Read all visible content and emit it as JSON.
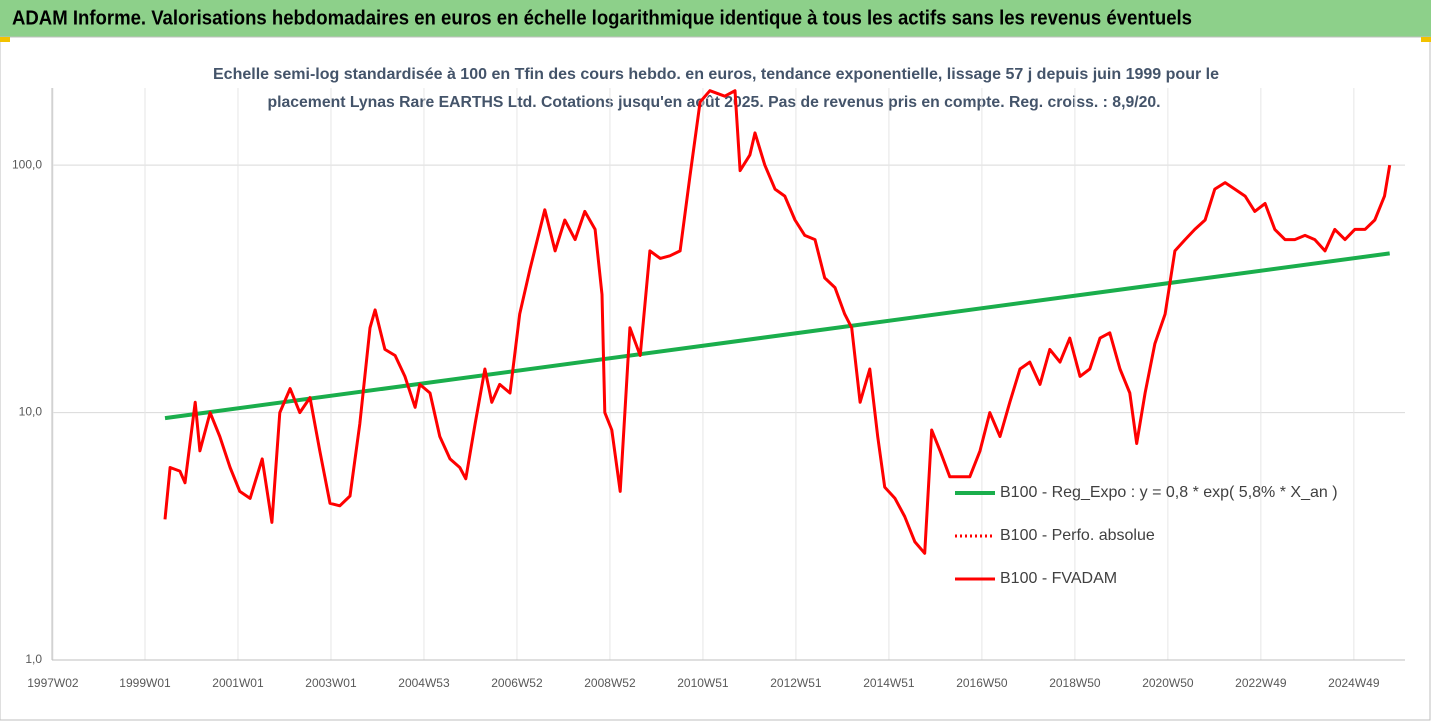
{
  "chart_data": {
    "type": "line",
    "title": "ADAM Informe. Valorisations hebdomadaires en euros en échelle logarithmique identique à tous les actifs sans les revenus éventuels",
    "subtitle": [
      "Echelle semi-log standardisée à 100 en Tfin des cours hebdo. en euros, tendance exponentielle, lissage 57 j depuis juin 1999 pour le",
      "placement Lynas Rare EARTHS Ltd. Cotations jusqu'en août 2025. Pas de revenus pris en compte. Reg. croiss. : 8,9/20."
    ],
    "log_scale_y": true,
    "grid": true,
    "legend_position": "right",
    "xlim": [
      1997.0,
      2026.1
    ],
    "xticks": [
      {
        "value": 1997.02,
        "label": "1997W02"
      },
      {
        "value": 1999.0,
        "label": "1999W01"
      },
      {
        "value": 2001.0,
        "label": "2001W01"
      },
      {
        "value": 2003.0,
        "label": "2003W01"
      },
      {
        "value": 2005.0,
        "label": "2004W53"
      },
      {
        "value": 2007.0,
        "label": "2006W52"
      },
      {
        "value": 2009.0,
        "label": "2008W52"
      },
      {
        "value": 2011.0,
        "label": "2010W51"
      },
      {
        "value": 2013.0,
        "label": "2012W51"
      },
      {
        "value": 2015.0,
        "label": "2014W51"
      },
      {
        "value": 2017.0,
        "label": "2016W50"
      },
      {
        "value": 2019.0,
        "label": "2018W50"
      },
      {
        "value": 2021.0,
        "label": "2020W50"
      },
      {
        "value": 2023.0,
        "label": "2022W49"
      },
      {
        "value": 2025.0,
        "label": "2024W49"
      }
    ],
    "ylim": [
      1,
      205
    ],
    "yticks": [
      {
        "value": 1,
        "label": "1,0"
      },
      {
        "value": 10,
        "label": "10,0"
      },
      {
        "value": 100,
        "label": "100,0"
      }
    ],
    "series": [
      {
        "name": "B100 - Reg_Expo : y = 0,8 * exp( 5,8% *  X_an )",
        "color": "#1aae4c",
        "style": "solid",
        "x": [
          1999.43,
          2025.77
        ],
        "values": [
          9.5,
          44
        ]
      },
      {
        "name": "B100 - Perfo. absolue",
        "color": "#ff0000",
        "style": "dotted",
        "x": [],
        "values": []
      },
      {
        "name": "B100 - FVADAM",
        "color": "#ff0000",
        "style": "solid",
        "x": [
          1999.43,
          1999.54,
          1999.75,
          1999.86,
          2000.08,
          2000.18,
          2000.4,
          2000.61,
          2000.83,
          2001.04,
          2001.26,
          2001.52,
          2001.73,
          2001.9,
          2002.12,
          2002.33,
          2002.55,
          2002.76,
          2002.98,
          2003.19,
          2003.41,
          2003.62,
          2003.84,
          2003.95,
          2004.16,
          2004.38,
          2004.59,
          2004.81,
          2004.91,
          2005.13,
          2005.34,
          2005.56,
          2005.77,
          2005.9,
          2006.1,
          2006.31,
          2006.46,
          2006.63,
          2006.85,
          2007.06,
          2007.28,
          2007.6,
          2007.82,
          2008.03,
          2008.25,
          2008.46,
          2008.68,
          2008.83,
          2008.89,
          2009.04,
          2009.22,
          2009.43,
          2009.65,
          2009.86,
          2010.08,
          2010.29,
          2010.51,
          2010.72,
          2010.94,
          2011.15,
          2011.47,
          2011.69,
          2011.8,
          2012.01,
          2012.12,
          2012.33,
          2012.55,
          2012.76,
          2012.98,
          2013.19,
          2013.41,
          2013.62,
          2013.84,
          2014.05,
          2014.2,
          2014.38,
          2014.59,
          2014.76,
          2014.91,
          2015.13,
          2015.34,
          2015.56,
          2015.77,
          2015.92,
          2016.1,
          2016.31,
          2016.53,
          2016.74,
          2016.96,
          2017.17,
          2017.39,
          2017.6,
          2017.82,
          2018.03,
          2018.25,
          2018.46,
          2018.68,
          2018.89,
          2019.11,
          2019.32,
          2019.54,
          2019.75,
          2019.97,
          2020.18,
          2020.33,
          2020.51,
          2020.72,
          2020.94,
          2021.15,
          2021.37,
          2021.58,
          2021.8,
          2022.01,
          2022.23,
          2022.44,
          2022.66,
          2022.87,
          2023.09,
          2023.3,
          2023.52,
          2023.73,
          2023.95,
          2024.16,
          2024.38,
          2024.59,
          2024.81,
          2025.02,
          2025.24,
          2025.45,
          2025.66,
          2025.77
        ],
        "values": [
          3.7,
          6,
          5.8,
          5.2,
          11,
          7,
          10,
          8,
          6,
          4.8,
          4.5,
          6.5,
          3.6,
          10,
          12.5,
          10,
          11.5,
          7,
          4.3,
          4.2,
          4.6,
          9,
          22,
          26,
          18,
          17,
          14,
          10.5,
          13,
          12,
          8,
          6.5,
          6,
          5.4,
          9,
          15,
          11,
          13,
          12,
          25,
          38,
          66,
          45,
          60,
          50,
          65,
          55,
          30,
          10,
          8.5,
          4.8,
          22,
          17,
          45,
          42,
          43,
          45,
          90,
          180,
          200,
          190,
          200,
          95,
          110,
          135,
          100,
          80,
          75,
          60,
          52,
          50,
          35,
          32,
          25,
          22,
          11,
          15,
          8,
          5,
          4.5,
          3.8,
          3.0,
          2.7,
          8.5,
          7,
          5.5,
          5.5,
          5.5,
          7,
          10,
          8,
          11,
          15,
          16,
          13,
          18,
          16,
          20,
          14,
          15,
          20,
          21,
          15,
          12,
          7.5,
          12,
          19,
          25,
          45,
          50,
          55,
          60,
          80,
          85,
          80,
          75,
          65,
          70,
          55,
          50,
          50,
          52,
          50,
          45,
          55,
          50,
          55,
          55,
          60,
          75,
          100
        ]
      }
    ]
  }
}
